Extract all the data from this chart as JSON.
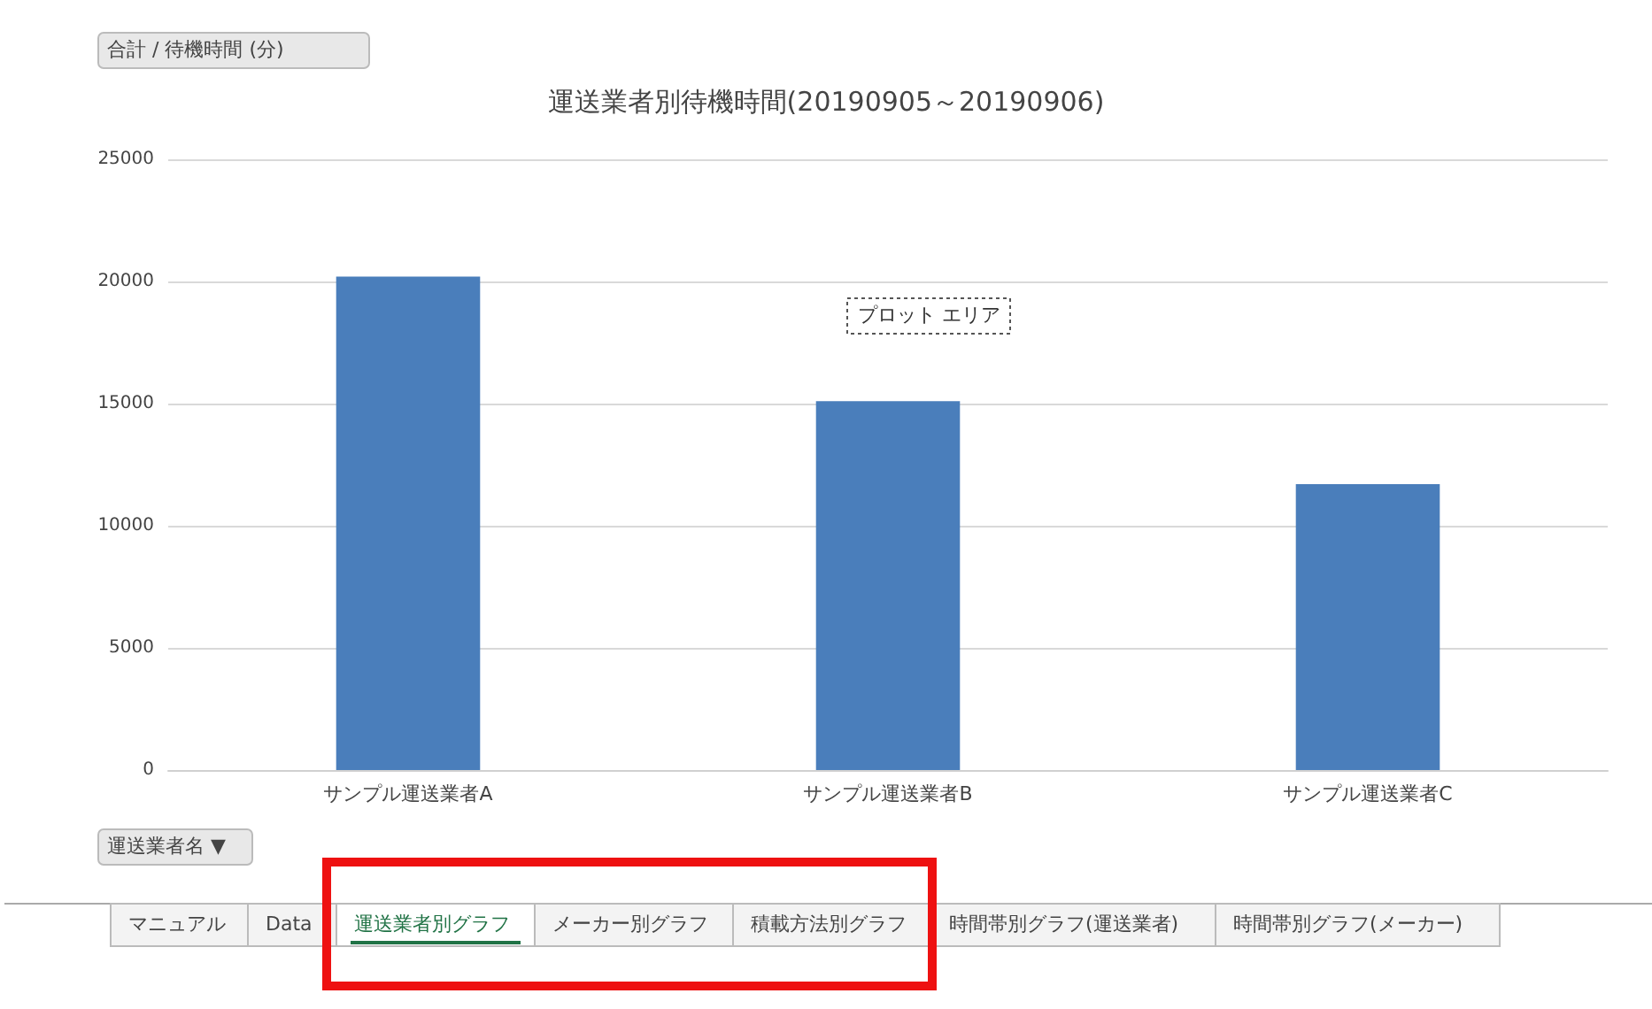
{
  "chart_data": {
    "type": "bar",
    "title": "運送業者別待機時間(20190905～20190906)",
    "ylabel": "合計 / 待機時間 (分)",
    "xlabel": "運送業者名 ▼",
    "categories": [
      "サンプル運送業者A",
      "サンプル運送業者B",
      "サンプル運送業者C"
    ],
    "values": [
      20200,
      15100,
      11700
    ],
    "color": "#4a7ebb",
    "ylim": [
      0,
      25000
    ],
    "yticks": [
      0,
      5000,
      10000,
      15000,
      20000,
      25000
    ],
    "grid": "y",
    "annotations": [
      "プロット エリア",
      "マニュアル",
      "Data",
      "運送業者別グラフ",
      "メーカー別グラフ",
      "積載方法別グラフ",
      "時間帯別グラフ(運送業者)",
      "時間帯別グラフ(メーカー)"
    ]
  }
}
